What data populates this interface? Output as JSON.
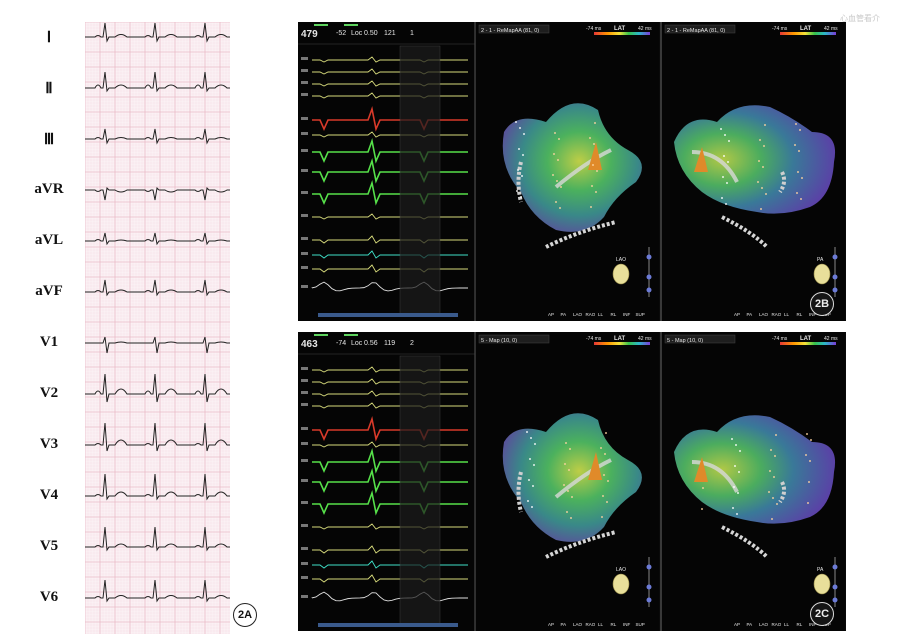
{
  "ecg": {
    "leads": [
      "Ⅰ",
      "Ⅱ",
      "Ⅲ",
      "aVR",
      "aVL",
      "aVF",
      "V1",
      "V2",
      "V3",
      "V4",
      "V5",
      "V6"
    ],
    "tag": "2A"
  },
  "watermark": "心血管看介",
  "panels": [
    {
      "tag": "2B",
      "header": {
        "rate": "479",
        "v1": "-52",
        "loc": "Loc",
        "v2": "0.50",
        "v3": "121",
        "v4": "1"
      },
      "map_left": {
        "title": "2 - 1 - ReMapAA (81, 0)",
        "scale_min": "-74 ms",
        "scale_label": "LAT",
        "scale_max": "42 ms",
        "view": "LAO"
      },
      "map_right": {
        "title": "2 - 1 - ReMapAA (81, 0)",
        "scale_min": "-74 ms",
        "scale_label": "LAT",
        "scale_max": "42 ms",
        "view": "PA"
      },
      "view_buttons": [
        "AP",
        "PA",
        "LAO",
        "RAO",
        "LL",
        "RL",
        "INF",
        "SUP"
      ]
    },
    {
      "tag": "2C",
      "header": {
        "rate": "463",
        "v1": "-74",
        "loc": "Loc",
        "v2": "0.56",
        "v3": "119",
        "v4": "2"
      },
      "map_left": {
        "title": "5 - Map (10, 0)",
        "scale_min": "-74 ms",
        "scale_label": "LAT",
        "scale_max": "42 ms",
        "view": "LAO"
      },
      "map_right": {
        "title": "5 - Map (10, 0)",
        "scale_min": "-74 ms",
        "scale_label": "LAT",
        "scale_max": "42 ms",
        "view": "PA"
      },
      "view_buttons": [
        "AP",
        "PA",
        "LAO",
        "RAO",
        "LL",
        "RL",
        "INF",
        "SUP"
      ]
    }
  ],
  "colors": {
    "ecg_grid": "#e9b7c4",
    "ecg_bg": "#fbf1f4",
    "trace_yellow": "#d8dc7c",
    "trace_red": "#d83a2a",
    "trace_green": "#56e04a",
    "trace_cyan": "#3fe0c8"
  }
}
